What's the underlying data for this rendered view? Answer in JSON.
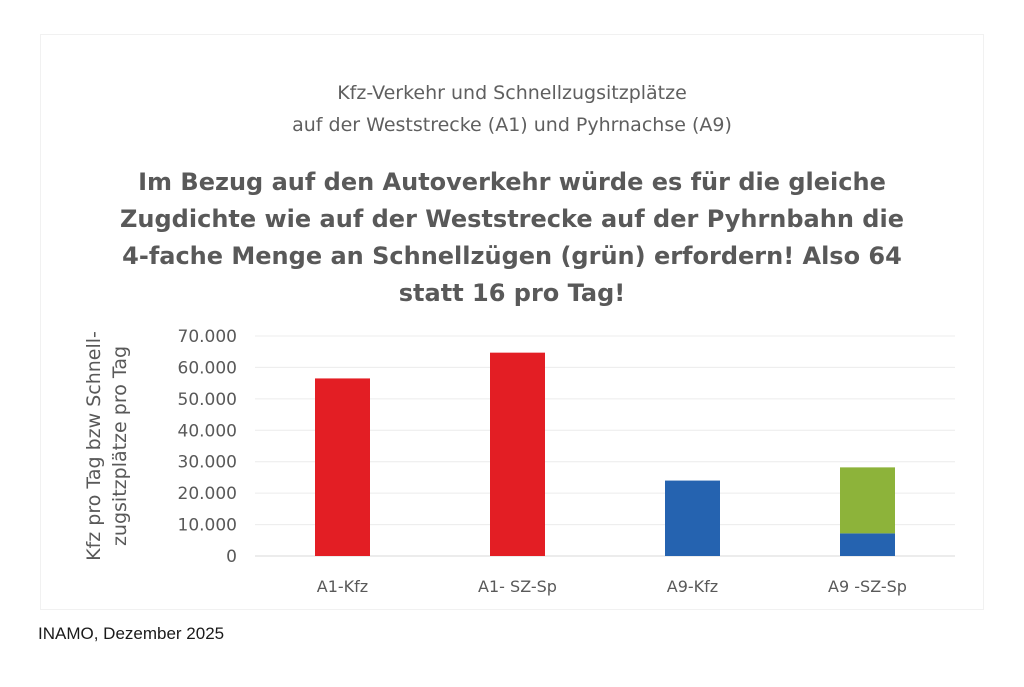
{
  "chart_data": {
    "type": "bar",
    "stacked": true,
    "title_lines": [
      "Kfz-Verkehr und Schnellzugsitzplätze",
      "auf der Weststrecke (A1) und Pyhrnachse (A9)"
    ],
    "subtitle_lines": [
      "Im Bezug auf den Autoverkehr würde es für die gleiche",
      "Zugdichte wie auf der Weststrecke auf der Pyhrnbahn die",
      "4-fache Menge an Schnellzügen (grün) erfordern! Also 64",
      "statt 16 pro Tag!"
    ],
    "ylabel_lines": [
      "Kfz pro Tag bzw Schnell-",
      "zugsitzplätze pro Tag"
    ],
    "xlabel": "",
    "ylim": [
      0,
      70000
    ],
    "yticks": [
      0,
      10000,
      20000,
      30000,
      40000,
      50000,
      60000,
      70000
    ],
    "ytick_labels": [
      "0",
      "10.000",
      "20.000",
      "30.000",
      "40.000",
      "50.000",
      "60.000",
      "70.000"
    ],
    "grid": true,
    "categories": [
      "A1-Kfz",
      "A1- SZ-Sp",
      "A9-Kfz",
      "A9 -SZ-Sp"
    ],
    "series": [
      {
        "color": "#e31e24",
        "values": [
          56500,
          64700,
          0,
          0
        ]
      },
      {
        "color": "#2563b0",
        "values": [
          0,
          0,
          24000,
          7200
        ]
      },
      {
        "color": "#8db33a",
        "values": [
          0,
          0,
          0,
          21000
        ]
      }
    ]
  },
  "source_note": "INAMO, Dezember 2025"
}
